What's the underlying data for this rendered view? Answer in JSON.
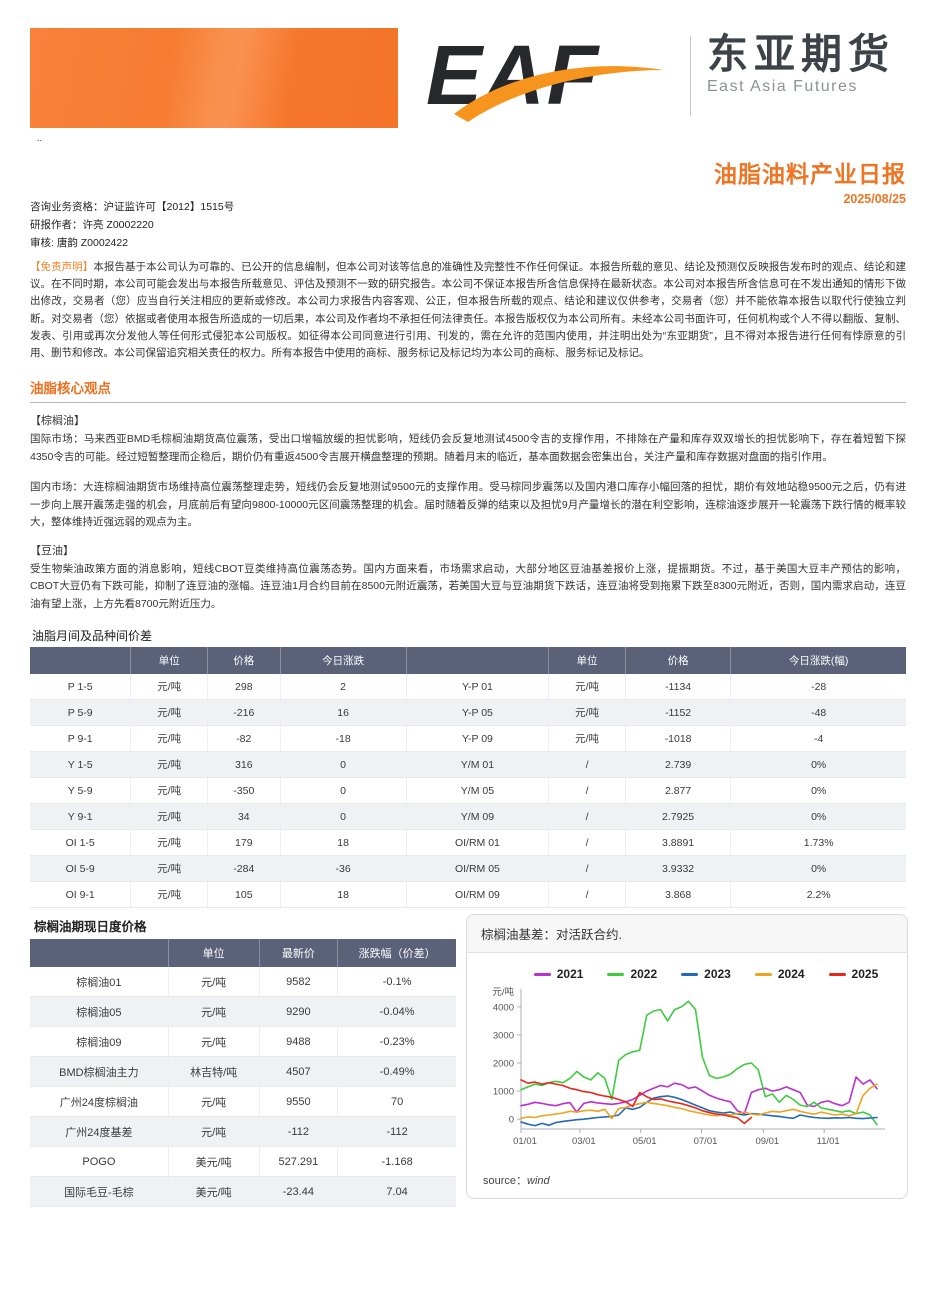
{
  "header": {
    "logo_text": "EAF",
    "brand_cn": "东亚期货",
    "brand_en": "East Asia Futures",
    "dots": "..",
    "report_title": "油脂油料产业日报",
    "report_date": "2025/08/25"
  },
  "meta": {
    "qualification": "咨询业务资格：沪证监许可【2012】1515号",
    "author": "研报作者：许亮 Z0002220",
    "reviewer": "审核: 唐韵 Z0002422"
  },
  "disclaimer": {
    "label": "【免责声明】",
    "text": "本报告基于本公司认为可靠的、已公开的信息编制，但本公司对该等信息的准确性及完整性不作任何保证。本报告所载的意见、结论及预测仅反映报告发布时的观点、结论和建议。在不同时期，本公司可能会发出与本报告所载意见、评估及预测不一致的研究报告。本公司不保证本报告所含信息保持在最新状态。本公司对本报告所含信息可在不发出通知的情形下做出修改，交易者（您）应当自行关注相应的更新或修改。本公司力求报告内容客观、公正，但本报告所载的观点、结论和建议仅供参考，交易者（您）并不能依靠本报告以取代行使独立判断。对交易者（您）依据或者使用本报告所造成的一切后果，本公司及作者均不承担任何法律责任。本报告版权仅为本公司所有。未经本公司书面许可，任何机构或个人不得以翻版、复制、发表、引用或再次分发他人等任何形式侵犯本公司版权。如征得本公司同意进行引用、刊发的，需在允许的范围内使用，并注明出处为“东亚期货”，且不得对本报告进行任何有悖原意的引用、删节和修改。本公司保留追究相关责任的权力。所有本报告中使用的商标、服务标记及标记均为本公司的商标、服务标记及标记。"
  },
  "core_view": {
    "title": "油脂核心观点",
    "palm_tag": "【棕榈油】",
    "palm_intl": "国际市场：马来西亚BMD毛棕榈油期货高位震荡，受出口增幅放缓的担忧影响，短线仍会反复地测试4500令吉的支撑作用，不排除在产量和库存双双增长的担忧影响下，存在着短暂下探4350令吉的可能。经过短暂整理而企稳后，期价仍有重返4500令吉展开横盘整理的预期。随着月末的临近，基本面数据会密集出台，关注产量和库存数据对盘面的指引作用。",
    "palm_domestic": "国内市场：大连棕榈油期货市场维持高位震荡整理走势，短线仍会反复地测试9500元的支撑作用。受马棕同步震荡以及国内港口库存小幅回落的担忧，期价有效地站稳9500元之后，仍有进一步向上展开震荡走强的机会，月底前后有望向9800-10000元区间震荡整理的机会。届时随着反弹的结束以及担忧9月产量增长的潜在利空影响，连棕油逐步展开一轮震荡下跌行情的概率较大，整体维持近强远弱的观点为主。",
    "soy_tag": "【豆油】",
    "soy_text": "受生物柴油政策方面的消息影响，短线CBOT豆类维持高位震荡态势。国内方面来看，市场需求启动，大部分地区豆油基差报价上涨，提振期货。不过，基于美国大豆丰产预估的影响，CBOT大豆仍有下跌可能，抑制了连豆油的涨幅。连豆油1月合约目前在8500元附近震荡，若美国大豆与豆油期货下跌话，连豆油将受到拖累下跌至8300元附近，否则，国内需求启动，连豆油有望上涨，上方先看8700元附近压力。"
  },
  "spread_table": {
    "title": "油脂月间及品种间价差",
    "headers": [
      "",
      "单位",
      "价格",
      "今日涨跌",
      "",
      "单位",
      "价格",
      "今日涨跌(幅)"
    ],
    "rows": [
      [
        "P 1-5",
        "元/吨",
        "298",
        "2",
        "Y-P 01",
        "元/吨",
        "-1134",
        "-28"
      ],
      [
        "P 5-9",
        "元/吨",
        "-216",
        "16",
        "Y-P 05",
        "元/吨",
        "-1152",
        "-48"
      ],
      [
        "P 9-1",
        "元/吨",
        "-82",
        "-18",
        "Y-P 09",
        "元/吨",
        "-1018",
        "-4"
      ],
      [
        "Y 1-5",
        "元/吨",
        "316",
        "0",
        "Y/M 01",
        "/",
        "2.739",
        "0%"
      ],
      [
        "Y 5-9",
        "元/吨",
        "-350",
        "0",
        "Y/M 05",
        "/",
        "2.877",
        "0%"
      ],
      [
        "Y 9-1",
        "元/吨",
        "34",
        "0",
        "Y/M 09",
        "/",
        "2.7925",
        "0%"
      ],
      [
        "OI 1-5",
        "元/吨",
        "179",
        "18",
        "OI/RM 01",
        "/",
        "3.8891",
        "1.73%"
      ],
      [
        "OI 5-9",
        "元/吨",
        "-284",
        "-36",
        "OI/RM 05",
        "/",
        "3.9332",
        "0%"
      ],
      [
        "OI 9-1",
        "元/吨",
        "105",
        "18",
        "OI/RM 09",
        "/",
        "3.868",
        "2.2%"
      ]
    ]
  },
  "price_table": {
    "title": "棕榈油期现日度价格",
    "headers": [
      "",
      "单位",
      "最新价",
      "涨跌幅（价差）"
    ],
    "rows": [
      [
        "棕榈油01",
        "元/吨",
        "9582",
        "-0.1%"
      ],
      [
        "棕榈油05",
        "元/吨",
        "9290",
        "-0.04%"
      ],
      [
        "棕榈油09",
        "元/吨",
        "9488",
        "-0.23%"
      ],
      [
        "BMD棕榈油主力",
        "林吉特/吨",
        "4507",
        "-0.49%"
      ],
      [
        "广州24度棕榈油",
        "元/吨",
        "9550",
        "70"
      ],
      [
        "广州24度基差",
        "元/吨",
        "-112",
        "-112"
      ],
      [
        "POGO",
        "美元/吨",
        "527.291",
        "-1.168"
      ],
      [
        "国际毛豆-毛棕",
        "美元/吨",
        "-23.44",
        "7.04"
      ]
    ]
  },
  "chart_data": {
    "type": "line",
    "title": "棕榈油基差：对活跃合约.",
    "ylabel": "元/吨",
    "source_label": "source：",
    "source_value": "wind",
    "grid": false,
    "legend_position": "top",
    "ylim": [
      -350,
      4350
    ],
    "yticks": [
      0,
      1000,
      2000,
      3000,
      4000
    ],
    "xticks_days": [
      0,
      59,
      120,
      181,
      243,
      304
    ],
    "xtick_labels": [
      "01/01",
      "03/01",
      "05/01",
      "07/01",
      "09/01",
      "11/01"
    ],
    "x_unit": "day-of-year, weekly sampling",
    "series": [
      {
        "name": "2021",
        "color": "#bb2fd0",
        "step_days": 7,
        "values": [
          480,
          530,
          600,
          560,
          510,
          480,
          550,
          590,
          250,
          560,
          620,
          580,
          550,
          530,
          560,
          620,
          700,
          850,
          1000,
          1100,
          1200,
          1150,
          1280,
          1230,
          1100,
          1150,
          1000,
          850,
          750,
          680,
          620,
          300,
          200,
          950,
          1050,
          1100,
          1000,
          1050,
          1150,
          1050,
          950,
          500,
          450,
          600,
          650,
          550,
          480,
          600,
          1500,
          1250,
          1400,
          1080
        ]
      },
      {
        "name": "2022",
        "color": "#3ecb3e",
        "step_days": 7,
        "values": [
          1050,
          1150,
          1250,
          1200,
          1300,
          1350,
          1300,
          1450,
          1700,
          1500,
          1400,
          1650,
          1450,
          700,
          2100,
          2300,
          2400,
          2450,
          3700,
          3850,
          3900,
          3500,
          3900,
          4000,
          4200,
          3900,
          2200,
          1550,
          1450,
          1500,
          1600,
          1800,
          1950,
          2000,
          1750,
          800,
          900,
          600,
          850,
          700,
          500,
          450,
          600,
          400,
          350,
          300,
          250,
          300,
          200,
          250,
          150,
          -200
        ]
      },
      {
        "name": "2023",
        "color": "#2268bb",
        "step_days": 7,
        "values": [
          -100,
          -180,
          -230,
          -150,
          -220,
          -120,
          -80,
          -50,
          -20,
          0,
          30,
          60,
          80,
          100,
          150,
          400,
          350,
          420,
          600,
          750,
          800,
          830,
          780,
          700,
          600,
          500,
          400,
          300,
          250,
          220,
          250,
          180,
          150,
          200,
          180,
          150,
          120,
          100,
          60,
          30,
          150,
          100,
          60,
          40,
          30,
          50,
          40,
          60,
          30,
          20,
          40,
          60
        ]
      },
      {
        "name": "2024",
        "color": "#eea41f",
        "step_days": 7,
        "values": [
          30,
          80,
          60,
          120,
          150,
          180,
          220,
          280,
          250,
          300,
          320,
          280,
          350,
          20,
          380,
          420,
          500,
          550,
          600,
          560,
          520,
          480,
          420,
          380,
          300,
          250,
          200,
          150,
          120,
          180,
          150,
          200,
          250,
          180,
          150,
          220,
          280,
          250,
          300,
          350,
          280,
          220,
          180,
          250,
          200,
          150,
          180,
          120,
          200,
          850,
          1100,
          1250
        ]
      },
      {
        "name": "2025",
        "color": "#e8271b",
        "step_days": 7,
        "values": [
          1400,
          1280,
          1320,
          1250,
          1300,
          1250,
          1200,
          1100,
          1050,
          980,
          950,
          870,
          820,
          780,
          700,
          620,
          450,
          950,
          800,
          700,
          720,
          650,
          600,
          550,
          480,
          400,
          300,
          230,
          180,
          150,
          100,
          50,
          -150,
          60
        ]
      }
    ]
  }
}
